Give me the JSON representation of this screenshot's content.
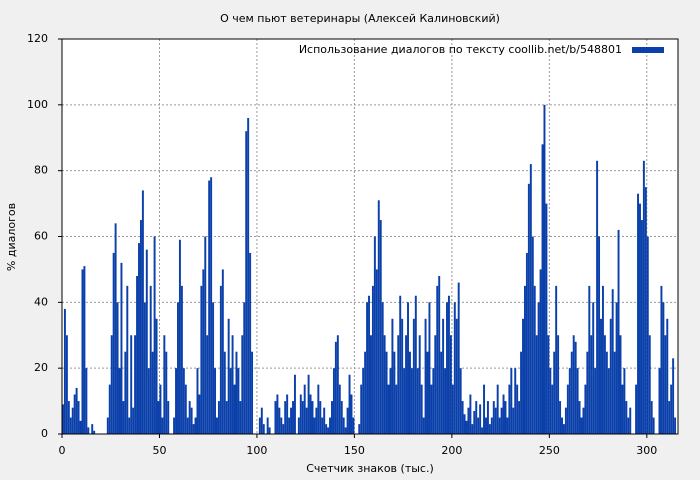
{
  "chart_data": {
    "type": "bar",
    "title": "О чем пьют ветеринары (Алексей Калиновский)",
    "xlabel": "Счетчик знаков (тыс.)",
    "ylabel": "% диалогов",
    "series": [
      {
        "name": "Использование диалогов по тексту  coollib.net/b/548801",
        "color": "#0b40aa",
        "values": [
          9,
          38,
          30,
          10,
          5,
          8,
          12,
          14,
          10,
          4,
          50,
          51,
          20,
          2,
          0,
          3,
          1,
          0,
          0,
          0,
          0,
          0,
          0,
          5,
          15,
          30,
          55,
          64,
          40,
          20,
          52,
          10,
          25,
          45,
          5,
          30,
          8,
          30,
          48,
          58,
          65,
          74,
          40,
          56,
          20,
          45,
          25,
          60,
          35,
          10,
          15,
          5,
          30,
          25,
          10,
          0,
          0,
          5,
          20,
          40,
          59,
          45,
          20,
          15,
          5,
          10,
          8,
          3,
          5,
          20,
          12,
          45,
          50,
          60,
          30,
          77,
          78,
          40,
          20,
          5,
          10,
          45,
          50,
          25,
          10,
          35,
          20,
          30,
          15,
          25,
          20,
          10,
          30,
          40,
          92,
          96,
          55,
          25,
          0,
          0,
          0,
          5,
          8,
          3,
          0,
          5,
          2,
          0,
          0,
          10,
          12,
          8,
          5,
          3,
          10,
          12,
          5,
          8,
          10,
          18,
          0,
          5,
          12,
          10,
          15,
          8,
          18,
          12,
          10,
          5,
          8,
          15,
          10,
          5,
          8,
          3,
          2,
          5,
          10,
          20,
          28,
          30,
          15,
          10,
          5,
          2,
          8,
          18,
          12,
          5,
          0,
          0,
          3,
          15,
          20,
          25,
          40,
          42,
          30,
          45,
          60,
          50,
          71,
          65,
          40,
          30,
          25,
          15,
          20,
          35,
          25,
          15,
          30,
          42,
          35,
          20,
          30,
          40,
          25,
          20,
          35,
          42,
          20,
          30,
          15,
          5,
          35,
          25,
          40,
          15,
          20,
          30,
          45,
          48,
          25,
          35,
          20,
          40,
          42,
          30,
          15,
          40,
          35,
          46,
          20,
          10,
          6,
          4,
          8,
          12,
          3,
          7,
          10,
          5,
          9,
          2,
          15,
          5,
          10,
          3,
          5,
          10,
          8,
          15,
          5,
          8,
          12,
          10,
          5,
          15,
          20,
          8,
          20,
          15,
          10,
          25,
          35,
          45,
          55,
          76,
          82,
          60,
          45,
          30,
          40,
          50,
          88,
          100,
          70,
          30,
          20,
          15,
          25,
          45,
          30,
          10,
          5,
          3,
          8,
          15,
          20,
          25,
          30,
          28,
          20,
          10,
          5,
          8,
          15,
          25,
          45,
          30,
          40,
          20,
          83,
          60,
          35,
          45,
          30,
          25,
          20,
          35,
          44,
          25,
          40,
          62,
          30,
          15,
          20,
          10,
          5,
          8,
          0,
          0,
          15,
          73,
          70,
          65,
          83,
          75,
          60,
          30,
          10,
          5,
          0,
          0,
          20,
          45,
          40,
          30,
          35,
          10,
          15,
          23,
          5,
          0
        ]
      }
    ],
    "x": [
      0,
      1,
      2,
      3,
      4,
      5,
      6,
      7,
      8,
      9,
      10,
      11,
      12,
      13,
      14,
      15,
      16,
      17,
      18,
      19,
      20,
      21,
      22,
      23,
      24,
      25,
      26,
      27,
      28,
      29,
      30,
      31,
      32,
      33,
      34,
      35,
      36,
      37,
      38,
      39,
      40,
      41,
      42,
      43,
      44,
      45,
      46,
      47,
      48,
      49,
      50,
      51,
      52,
      53,
      54,
      55,
      56,
      57,
      58,
      59,
      60,
      61,
      62,
      63,
      64,
      65,
      66,
      67,
      68,
      69,
      70,
      71,
      72,
      73,
      74,
      75,
      76,
      77,
      78,
      79,
      80,
      81,
      82,
      83,
      84,
      85,
      86,
      87,
      88,
      89,
      90,
      91,
      92,
      93,
      94,
      95,
      96,
      97,
      98,
      99,
      100,
      101,
      102,
      103,
      104,
      105,
      106,
      107,
      108,
      109,
      110,
      111,
      112,
      113,
      114,
      115,
      116,
      117,
      118,
      119,
      120,
      121,
      122,
      123,
      124,
      125,
      126,
      127,
      128,
      129,
      130,
      131,
      132,
      133,
      134,
      135,
      136,
      137,
      138,
      139,
      140,
      141,
      142,
      143,
      144,
      145,
      146,
      147,
      148,
      149,
      150,
      151,
      152,
      153,
      154,
      155,
      156,
      157,
      158,
      159,
      160,
      161,
      162,
      163,
      164,
      165,
      166,
      167,
      168,
      169,
      170,
      171,
      172,
      173,
      174,
      175,
      176,
      177,
      178,
      179,
      180,
      181,
      182,
      183,
      184,
      185,
      186,
      187,
      188,
      189,
      190,
      191,
      192,
      193,
      194,
      195,
      196,
      197,
      198,
      199,
      200,
      201,
      202,
      203,
      204,
      205,
      206,
      207,
      208,
      209,
      210,
      211,
      212,
      213,
      214,
      215,
      216,
      217,
      218,
      219,
      220,
      221,
      222,
      223,
      224,
      225,
      226,
      227,
      228,
      229,
      230,
      231,
      232,
      233,
      234,
      235,
      236,
      237,
      238,
      239,
      240,
      241,
      242,
      243,
      244,
      245,
      246,
      247,
      248,
      249,
      250,
      251,
      252,
      253,
      254,
      255,
      256,
      257,
      258,
      259,
      260,
      261,
      262,
      263,
      264,
      265,
      266,
      267,
      268,
      269,
      270,
      271,
      272,
      273,
      274,
      275,
      276,
      277,
      278,
      279,
      280,
      281,
      282,
      283,
      284,
      285,
      286,
      287,
      288,
      289,
      290,
      291,
      292,
      293,
      294,
      295,
      296,
      297,
      298,
      299,
      300,
      301,
      302,
      303,
      304,
      305,
      306,
      307,
      308,
      309,
      310,
      311,
      312,
      313,
      314,
      315
    ],
    "xlim": [
      0,
      316
    ],
    "ylim": [
      0,
      120
    ],
    "xticks": [
      0,
      50,
      100,
      150,
      200,
      250,
      300
    ],
    "yticks": [
      0,
      20,
      40,
      60,
      80,
      100,
      120
    ],
    "grid": true,
    "legend": "upper right"
  }
}
